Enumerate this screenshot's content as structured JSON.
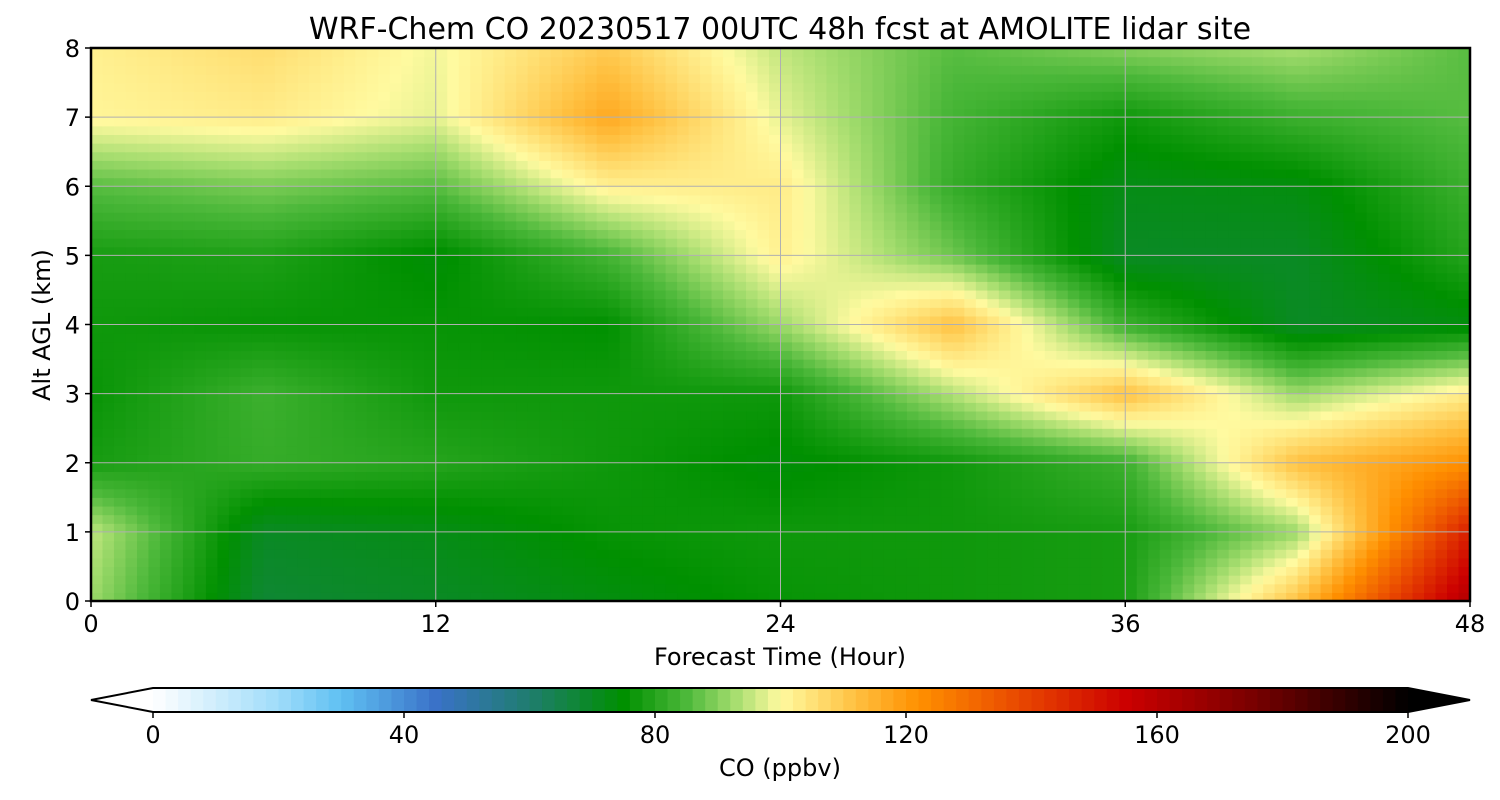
{
  "chart_data": {
    "type": "heatmap",
    "title": "WRF-Chem CO  20230517 00UTC 48h fcst at AMOLITE lidar site",
    "xlabel": "Forecast Time (Hour)",
    "ylabel": "Alt AGL (km)",
    "xlim": [
      0,
      48
    ],
    "ylim": [
      0,
      8
    ],
    "x_ticks": [
      "0",
      "12",
      "24",
      "36",
      "48"
    ],
    "y_ticks": [
      "0",
      "1",
      "2",
      "3",
      "4",
      "5",
      "6",
      "7",
      "8"
    ],
    "grid": true,
    "colorbar": {
      "label": "CO  (ppbv)",
      "range": [
        0,
        200
      ],
      "extend": "both",
      "ticks": [
        "0",
        "40",
        "80",
        "120",
        "160",
        "200"
      ],
      "stops": [
        {
          "value": 0,
          "color": "#ffffff"
        },
        {
          "value": 20,
          "color": "#9fdcfa"
        },
        {
          "value": 30,
          "color": "#5fc0f2"
        },
        {
          "value": 45,
          "color": "#3a72c8"
        },
        {
          "value": 60,
          "color": "#1f7d6e"
        },
        {
          "value": 75,
          "color": "#009000"
        },
        {
          "value": 85,
          "color": "#4cb83a"
        },
        {
          "value": 93,
          "color": "#a8de70"
        },
        {
          "value": 100,
          "color": "#fffaa0"
        },
        {
          "value": 112,
          "color": "#ffc040"
        },
        {
          "value": 122,
          "color": "#ff9000"
        },
        {
          "value": 140,
          "color": "#e64000"
        },
        {
          "value": 155,
          "color": "#cc0000"
        },
        {
          "value": 175,
          "color": "#7a0000"
        },
        {
          "value": 200,
          "color": "#000000"
        }
      ]
    },
    "grid_z": {
      "x": [
        0,
        6,
        12,
        18,
        24,
        30,
        36,
        42,
        48
      ],
      "y": [
        0,
        1,
        2,
        3,
        4,
        5,
        6,
        7,
        8
      ],
      "values": [
        [
          92,
          68,
          70,
          73,
          76,
          77,
          78,
          112,
          162
        ],
        [
          95,
          70,
          72,
          76,
          77,
          77,
          78,
          92,
          148
        ],
        [
          78,
          82,
          80,
          77,
          74,
          77,
          83,
          112,
          122
        ],
        [
          76,
          83,
          77,
          77,
          77,
          94,
          112,
          92,
          103
        ],
        [
          77,
          76,
          76,
          75,
          92,
          112,
          83,
          70,
          73
        ],
        [
          78,
          79,
          74,
          84,
          102,
          88,
          70,
          70,
          80
        ],
        [
          86,
          89,
          86,
          102,
          103,
          82,
          72,
          73,
          83
        ],
        [
          101,
          103,
          98,
          117,
          98,
          84,
          77,
          83,
          86
        ],
        [
          102,
          106,
          99,
          110,
          95,
          86,
          90,
          93,
          86
        ]
      ]
    }
  }
}
